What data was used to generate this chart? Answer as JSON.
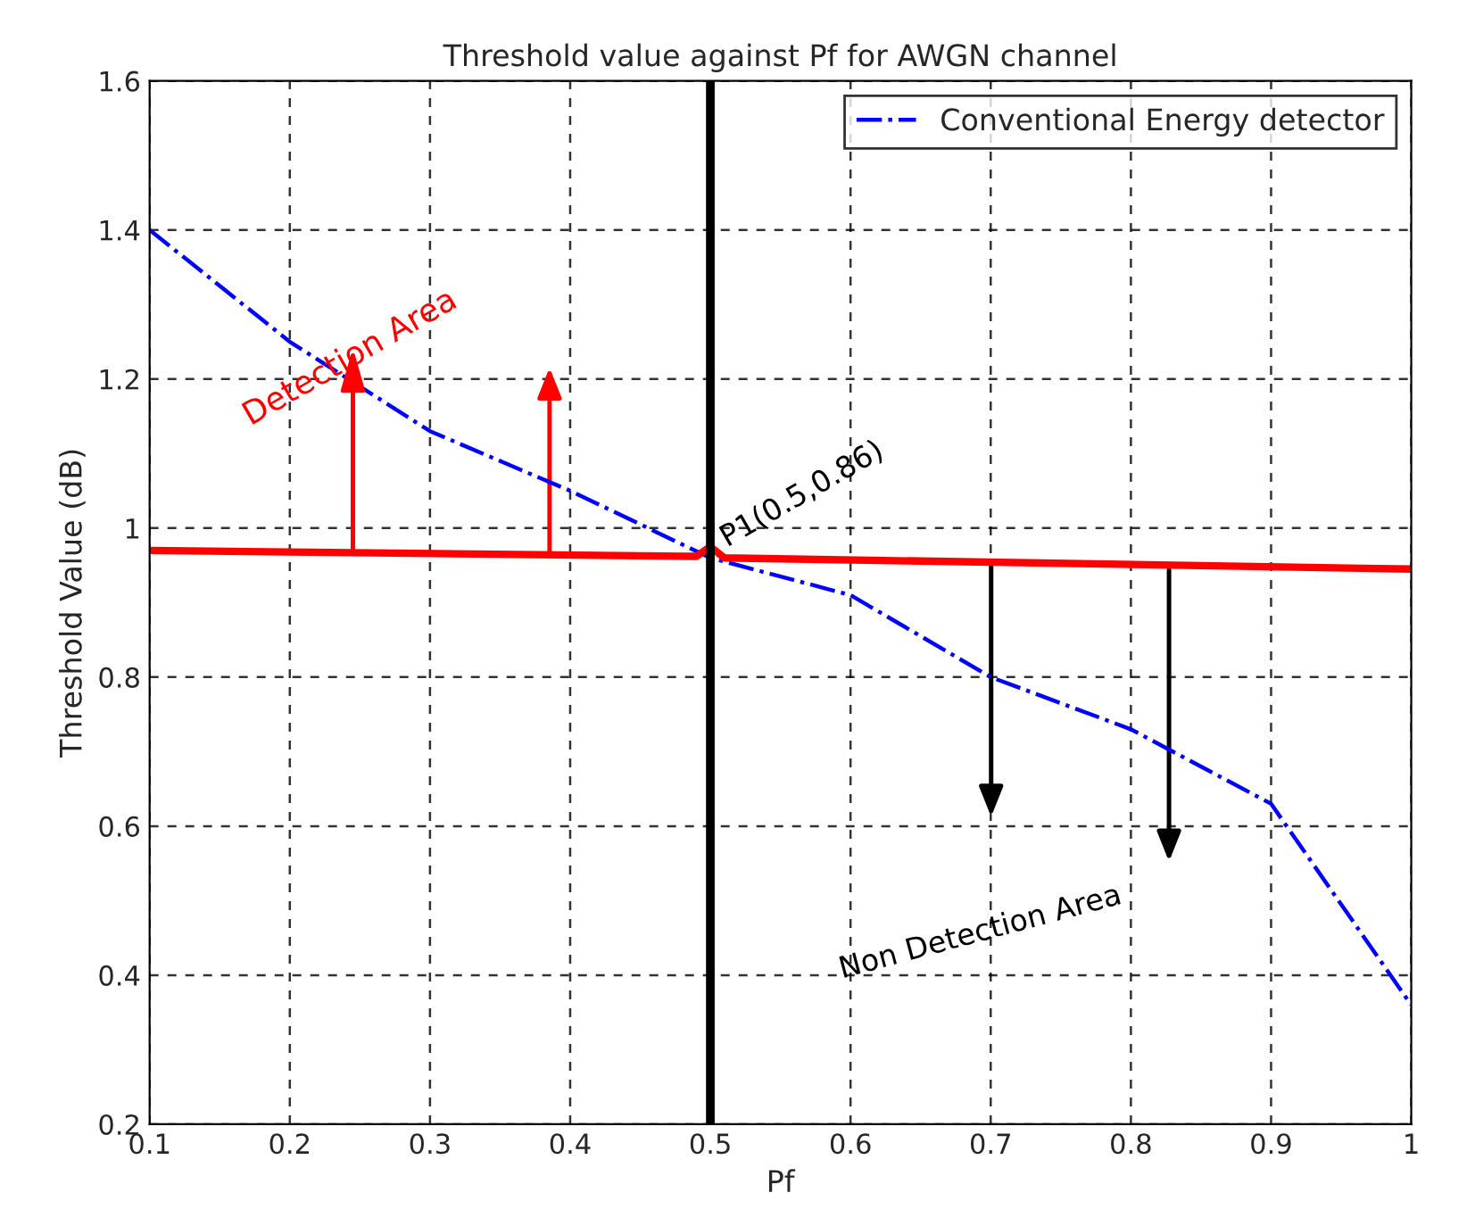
{
  "chart_data": {
    "type": "line",
    "title": "Threshold value against Pf for AWGN channel",
    "xlabel": "Pf",
    "ylabel": "Threshold Value (dB)",
    "series": [
      {
        "name": "Conventional Energy detector",
        "color": "#0000ff",
        "line_style": "dashdot",
        "x": [
          0.1,
          0.2,
          0.3,
          0.4,
          0.5,
          0.6,
          0.7,
          0.8,
          0.9,
          1.0
        ],
        "values": [
          1.4,
          1.25,
          1.13,
          1.05,
          0.96,
          0.91,
          0.8,
          0.73,
          0.63,
          0.36
        ]
      },
      {
        "color": "#ff0000",
        "line_style": "solid",
        "x": [
          0.1,
          0.49,
          0.5,
          0.51,
          1.0
        ],
        "values": [
          0.97,
          0.962,
          0.975,
          0.96,
          0.945
        ]
      }
    ],
    "ref_lines": [
      {
        "axis": "x",
        "value": 0.5,
        "color": "#000000"
      }
    ],
    "annotations": [
      {
        "text": "Detection Area",
        "x": 0.245,
        "y": 0.966
      },
      {
        "text": "P1(0.5,0.86)",
        "x": 0.5,
        "y": 0.96
      },
      "Non Detection Area"
    ],
    "xlim": [
      0.1,
      1.0
    ],
    "xticks": [
      0.1,
      0.2,
      0.3,
      0.4,
      0.5,
      0.6,
      0.7,
      0.8,
      0.9,
      1
    ],
    "ylim": [
      0.2,
      1.6
    ],
    "yticks": [
      0.2,
      0.4,
      0.6,
      0.8,
      1,
      1.2,
      1.4,
      1.6
    ],
    "grid": true,
    "legend": "top right",
    "marker": "none"
  }
}
